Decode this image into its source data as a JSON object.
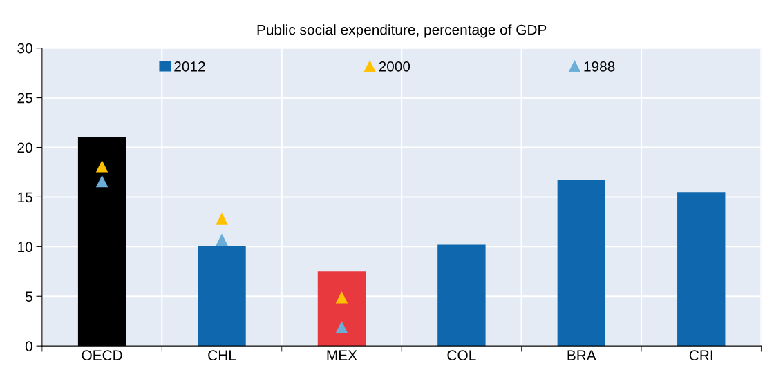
{
  "chart_data": {
    "type": "bar",
    "title": "Public social expenditure, percentage of GDP",
    "categories": [
      "OECD",
      "CHL",
      "MEX",
      "COL",
      "BRA",
      "CRI"
    ],
    "series": [
      {
        "name": "2012",
        "color": "#0f68ad",
        "colors": [
          "#000000",
          "#0f68ad",
          "#e8393f",
          "#0f68ad",
          "#0f68ad",
          "#0f68ad"
        ],
        "values": [
          21.0,
          10.1,
          7.5,
          10.2,
          16.7,
          15.5
        ]
      },
      {
        "name": "2000",
        "type": "scatter",
        "marker": "triangle",
        "color": "#ffc000",
        "x": [
          "OECD",
          "CHL",
          "MEX"
        ],
        "values": [
          18.1,
          12.8,
          4.9
        ]
      },
      {
        "name": "1988",
        "type": "scatter",
        "marker": "triangle",
        "color": "#6aaed8",
        "x": [
          "OECD",
          "CHL",
          "MEX"
        ],
        "values": [
          16.6,
          10.7,
          1.9
        ]
      }
    ],
    "ylim": [
      0,
      30
    ],
    "yticks": [
      0,
      5,
      10,
      15,
      20,
      25,
      30
    ],
    "grid": true,
    "legend": "top"
  }
}
